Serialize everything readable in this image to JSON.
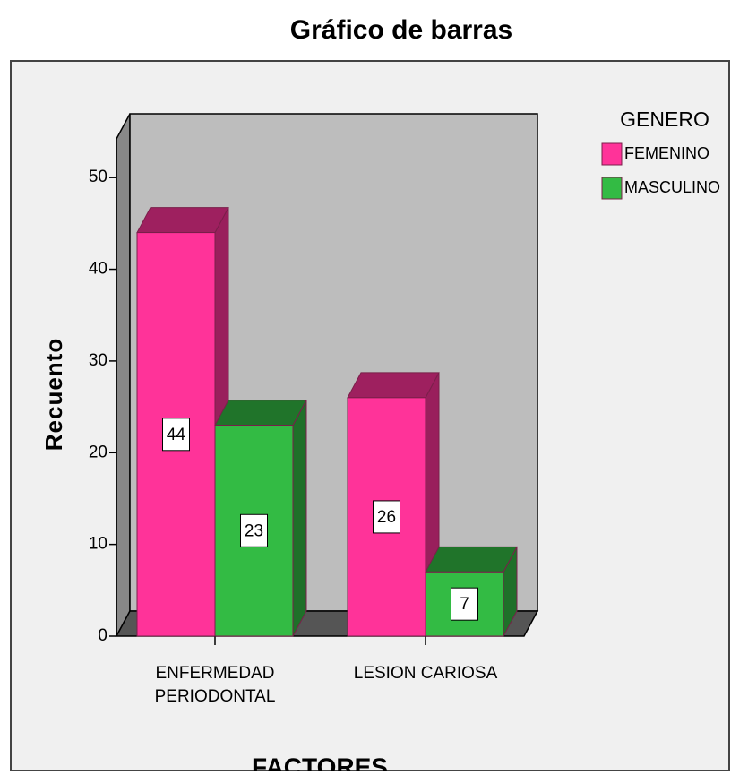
{
  "chart_data": {
    "type": "bar3d",
    "title": "Gráfico de barras",
    "categories": [
      "ENFERMEDAD PERIODONTAL",
      "LESION CARIOSA"
    ],
    "series": [
      {
        "name": "FEMENINO",
        "color": "#ff3399",
        "values": [
          44,
          26
        ]
      },
      {
        "name": "MASCULINO",
        "color": "#33bb44",
        "values": [
          23,
          7
        ]
      }
    ],
    "legend_title": "GENERO",
    "legend": "right",
    "xlabel": "FACTORES",
    "ylabel": "Recuento",
    "ylim": [
      0,
      55
    ],
    "yticks": [
      0,
      10,
      20,
      30,
      40,
      50
    ],
    "grid": false
  }
}
